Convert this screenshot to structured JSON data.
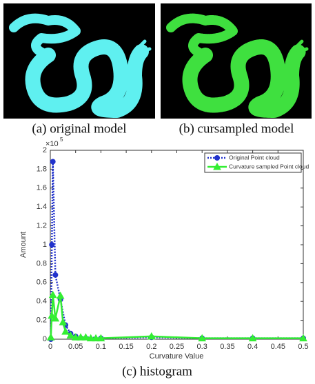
{
  "figure": {
    "panels": [
      {
        "caption": "(a) original model"
      },
      {
        "caption": "(b) cursampled model"
      }
    ],
    "caption": "(c) histogram"
  },
  "chart_data": {
    "type": "line",
    "xlabel": "Curvature Value",
    "ylabel": "Amount",
    "y_scale_base": "×10",
    "y_scale_exponent": "5",
    "xlim": [
      0,
      0.5
    ],
    "ylim": [
      0,
      2
    ],
    "xticks": [
      0,
      0.05,
      0.1,
      0.15,
      0.2,
      0.25,
      0.3,
      0.35,
      0.4,
      0.45,
      0.5
    ],
    "yticks": [
      0,
      0.2,
      0.4,
      0.6,
      0.8,
      1,
      1.2,
      1.4,
      1.6,
      1.8,
      2
    ],
    "legend": "top-right",
    "series": [
      {
        "name": "Original Point cloud",
        "color": "#2233cc",
        "linestyle": "dotted",
        "marker": "circle",
        "x": [
          0.001,
          0.003,
          0.005,
          0.01,
          0.02,
          0.03,
          0.04,
          0.05,
          0.1,
          0.2,
          0.3,
          0.4,
          0.5
        ],
        "values": [
          0,
          1.0,
          1.88,
          0.68,
          0.42,
          0.15,
          0.06,
          0.03,
          0.01,
          0.02,
          0.01,
          0.01,
          0.01
        ]
      },
      {
        "name": "Curvature sampled Point cloud",
        "color": "#33ee33",
        "linestyle": "solid",
        "marker": "triangle",
        "x": [
          0.001,
          0.003,
          0.005,
          0.01,
          0.02,
          0.025,
          0.03,
          0.04,
          0.05,
          0.06,
          0.07,
          0.08,
          0.09,
          0.1,
          0.2,
          0.3,
          0.4,
          0.5
        ],
        "values": [
          0.02,
          0.25,
          0.47,
          0.22,
          0.46,
          0.18,
          0.08,
          0.04,
          0.02,
          0.02,
          0.02,
          0.01,
          0.01,
          0.01,
          0.03,
          0.01,
          0.01,
          0.01
        ]
      }
    ]
  }
}
